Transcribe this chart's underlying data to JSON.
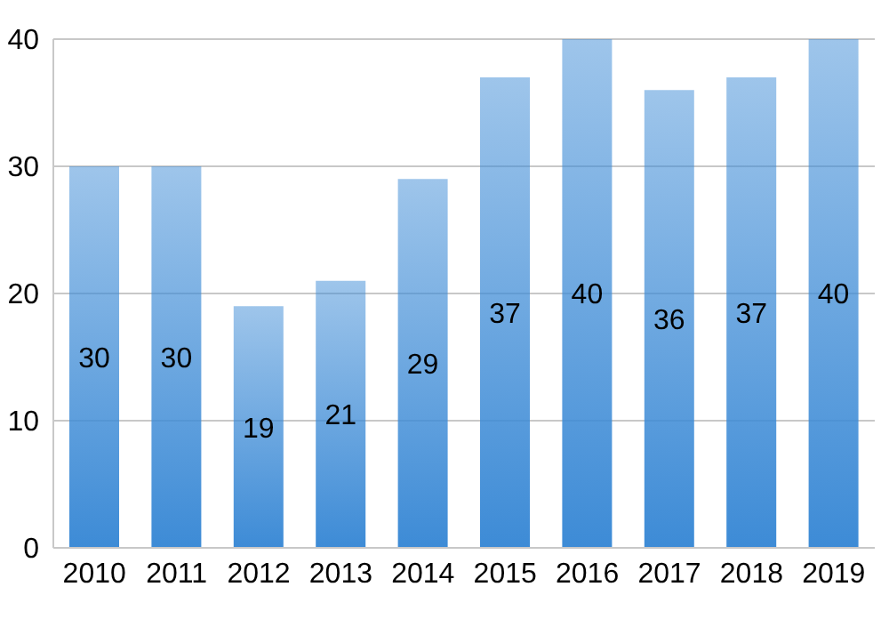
{
  "chart_data": {
    "type": "bar",
    "categories": [
      "2010",
      "2011",
      "2012",
      "2013",
      "2014",
      "2015",
      "2016",
      "2017",
      "2018",
      "2019"
    ],
    "values": [
      30,
      30,
      19,
      21,
      29,
      37,
      40,
      36,
      37,
      40
    ],
    "color": "#3d8bd6",
    "ylim": [
      0,
      40
    ],
    "yticks": [
      0,
      10,
      20,
      30,
      40
    ],
    "grid": "y",
    "data_labels": true
  }
}
